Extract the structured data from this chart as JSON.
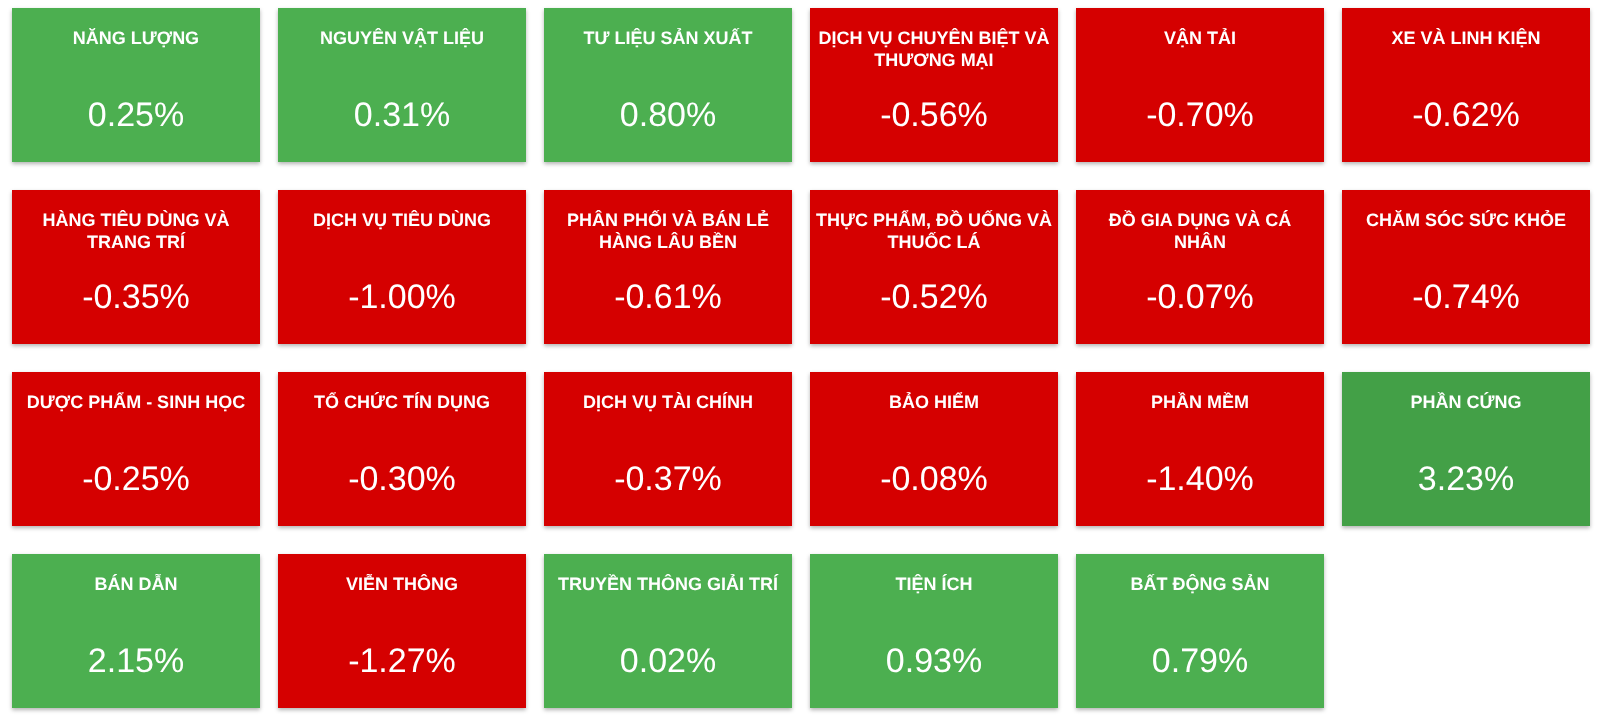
{
  "chart_data": {
    "type": "other",
    "categories": [
      "NĂNG LƯỢNG",
      "NGUYÊN VẬT LIỆU",
      "TƯ LIỆU SẢN XUẤT",
      "DỊCH VỤ CHUYÊN BIỆT VÀ THƯƠNG MẠI",
      "VẬN TẢI",
      "XE VÀ LINH KIỆN",
      "HÀNG TIÊU DÙNG VÀ TRANG TRÍ",
      "DỊCH VỤ TIÊU DÙNG",
      "PHÂN PHỐI VÀ BÁN LẺ HÀNG LÂU BỀN",
      "THỰC PHẨM, ĐỒ UỐNG VÀ THUỐC LÁ",
      "ĐỒ GIA DỤNG VÀ CÁ NHÂN",
      "CHĂM SÓC SỨC KHỎE",
      "DƯỢC PHẨM - SINH HỌC",
      "TỔ CHỨC TÍN DỤNG",
      "DỊCH VỤ TÀI CHÍNH",
      "BẢO HIỂM",
      "PHẦN MỀM",
      "PHẦN CỨNG",
      "BÁN DẪN",
      "VIỄN THÔNG",
      "TRUYỀN THÔNG GIẢI TRÍ",
      "TIỆN ÍCH",
      "BẤT ĐỘNG SẢN"
    ],
    "values": [
      0.25,
      0.31,
      0.8,
      -0.56,
      -0.7,
      -0.62,
      -0.35,
      -1.0,
      -0.61,
      -0.52,
      -0.07,
      -0.74,
      -0.25,
      -0.3,
      -0.37,
      -0.08,
      -1.4,
      3.23,
      2.15,
      -1.27,
      0.02,
      0.93,
      0.79
    ],
    "value_labels": [
      "0.25%",
      "0.31%",
      "0.80%",
      "-0.56%",
      "-0.70%",
      "-0.62%",
      "-0.35%",
      "-1.00%",
      "-0.61%",
      "-0.52%",
      "-0.07%",
      "-0.74%",
      "-0.25%",
      "-0.30%",
      "-0.37%",
      "-0.08%",
      "-1.40%",
      "3.23%",
      "2.15%",
      "-1.27%",
      "0.02%",
      "0.93%",
      "0.79%"
    ],
    "colors": [
      "#4caf50",
      "#4caf50",
      "#4caf50",
      "#d50000",
      "#d50000",
      "#d50000",
      "#d50000",
      "#d50000",
      "#d50000",
      "#d50000",
      "#d50000",
      "#d50000",
      "#d50000",
      "#d50000",
      "#d50000",
      "#d50000",
      "#d50000",
      "#43a047",
      "#4caf50",
      "#d50000",
      "#4caf50",
      "#4caf50",
      "#4caf50"
    ]
  }
}
